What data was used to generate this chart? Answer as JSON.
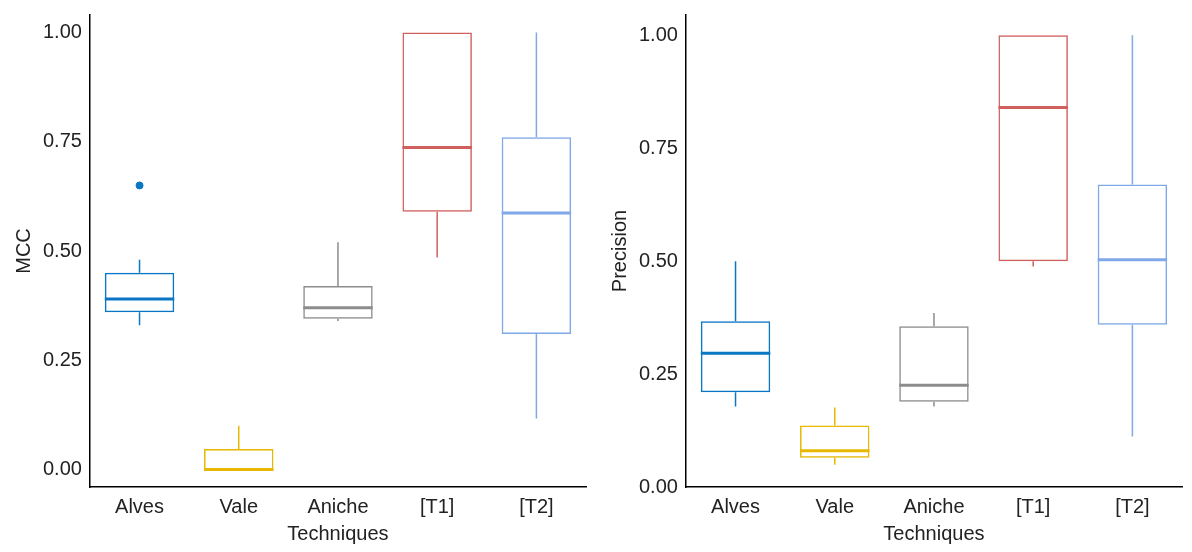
{
  "chart_data": [
    {
      "type": "box",
      "xlabel": "Techniques",
      "ylabel": "MCC",
      "categories": [
        "Alves",
        "Vale",
        "Aniche",
        "[T1]",
        "[T2]"
      ],
      "colors": [
        "#0b76c4",
        "#e8b800",
        "#8c8c8c",
        "#d0605e",
        "#7fa8e8"
      ],
      "ylim": [
        -0.04,
        1.04
      ],
      "yticks": [
        {
          "value": 0,
          "label": "0.00"
        },
        {
          "value": 0.25,
          "label": "0.25"
        },
        {
          "value": 0.5,
          "label": "0.50"
        },
        {
          "value": 0.75,
          "label": "0.75"
        },
        {
          "value": 1,
          "label": "1.00"
        }
      ],
      "grid": false,
      "legend": false,
      "boxes": [
        {
          "low": 0.33,
          "q1": 0.36,
          "median": 0.39,
          "q3": 0.45,
          "high": 0.48,
          "outliers": [
            0.65
          ]
        },
        {
          "low": 0,
          "q1": 0,
          "median": 0,
          "q3": 0.047,
          "high": 0.1
        },
        {
          "low": 0.34,
          "q1": 0.345,
          "median": 0.37,
          "q3": 0.42,
          "high": 0.52
        },
        {
          "low": 0.485,
          "q1": 0.59,
          "median": 0.737,
          "q3": 1,
          "high": 1
        },
        {
          "low": 0.117,
          "q1": 0.31,
          "median": 0.587,
          "q3": 0.76,
          "high": 1
        }
      ]
    },
    {
      "type": "box",
      "xlabel": "Techniques",
      "ylabel": "Precision",
      "categories": [
        "Alves",
        "Vale",
        "Aniche",
        "[T1]",
        "[T2]"
      ],
      "colors": [
        "#0b76c4",
        "#e8b800",
        "#8c8c8c",
        "#d0605e",
        "#7fa8e8"
      ],
      "ylim": [
        0,
        1.045
      ],
      "yticks": [
        {
          "value": 0,
          "label": "0.00"
        },
        {
          "value": 0.25,
          "label": "0.25"
        },
        {
          "value": 0.5,
          "label": "0.50"
        },
        {
          "value": 0.75,
          "label": "0.75"
        },
        {
          "value": 1,
          "label": "1.00"
        }
      ],
      "grid": false,
      "legend": false,
      "boxes": [
        {
          "low": 0.178,
          "q1": 0.21,
          "median": 0.296,
          "q3": 0.367,
          "high": 0.5
        },
        {
          "low": 0.049,
          "q1": 0.065,
          "median": 0.08,
          "q3": 0.136,
          "high": 0.176
        },
        {
          "low": 0.178,
          "q1": 0.189,
          "median": 0.225,
          "q3": 0.356,
          "high": 0.385
        },
        {
          "low": 0.488,
          "q1": 0.5,
          "median": 0.84,
          "q3": 1,
          "high": 1
        },
        {
          "low": 0.112,
          "q1": 0.359,
          "median": 0.503,
          "q3": 0.67,
          "high": 1
        }
      ]
    }
  ]
}
